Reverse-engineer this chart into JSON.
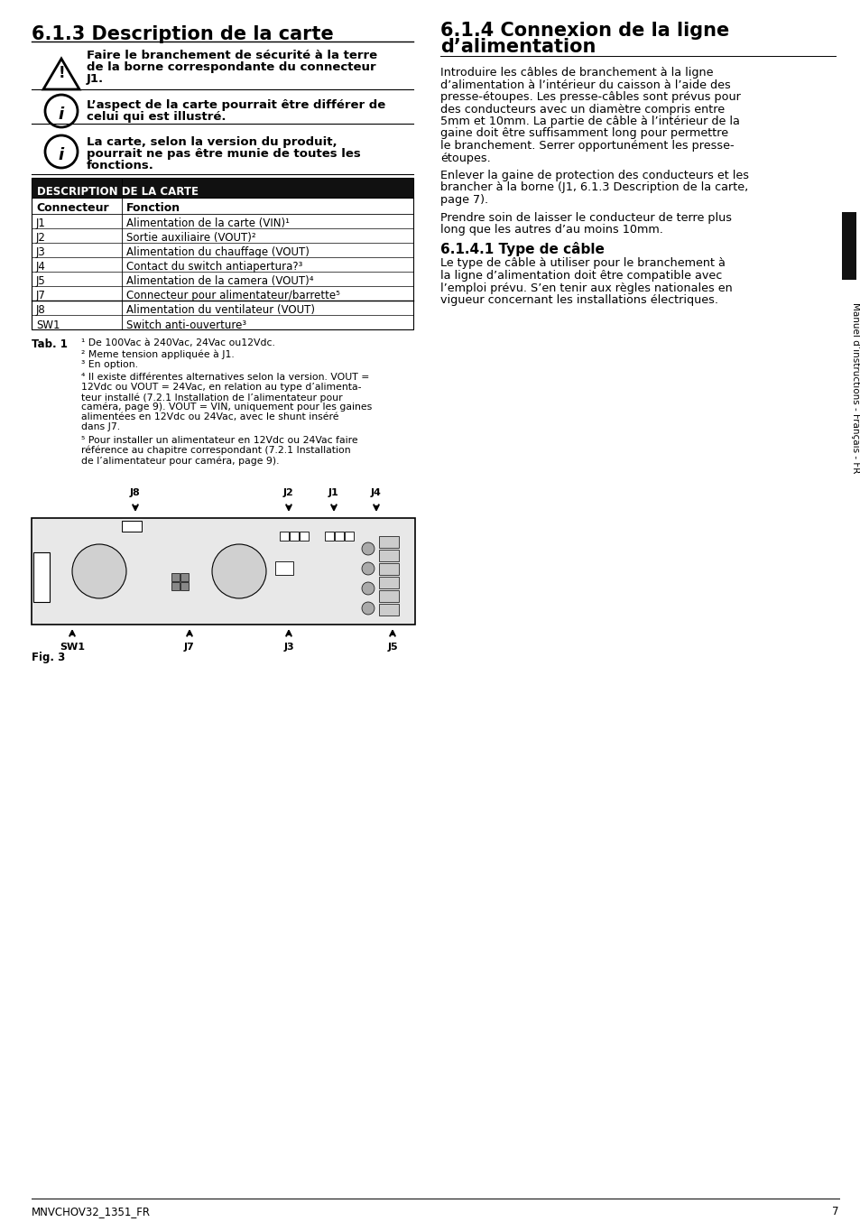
{
  "page_num": "7",
  "footer_left": "MNVCHOV32_1351_FR",
  "side_text": "Manuel d’instructions - Français - FR",
  "left_col": {
    "title": "6.1.3 Description de la carte",
    "warning_line1": "Faire le branchement de sécurité à la terre",
    "warning_line2": "de la borne correspondante du connecteur",
    "warning_line3": "J1.",
    "info1_line1": "L’aspect de la carte pourrait être différer de",
    "info1_line2": "celui qui est illustré.",
    "info2_line1": "La carte, selon la version du produit,",
    "info2_line2": "pourrait ne pas être munie de toutes les",
    "info2_line3": "fonctions.",
    "table_header": "DESCRIPTION DE LA CARTE",
    "table_col1": "Connecteur",
    "table_col2": "Fonction",
    "table_rows": [
      [
        "J1",
        "Alimentation de la carte (VIN)¹"
      ],
      [
        "J2",
        "Sortie auxiliaire (VOUT)²"
      ],
      [
        "J3",
        "Alimentation du chauffage (VOUT)"
      ],
      [
        "J4",
        "Contact du switch antiapertura?³"
      ],
      [
        "J5",
        "Alimentation de la camera (VOUT)⁴"
      ],
      [
        "J7",
        "Connecteur pour alimentateur/barrette⁵"
      ],
      [
        "J8",
        "Alimentation du ventilateur (VOUT)"
      ],
      [
        "SW1",
        "Switch anti-ouverture³"
      ]
    ],
    "tab1_label": "Tab. 1",
    "fn1": "¹ De 100Vac à 240Vac, 24Vac ou12Vdc.",
    "fn2": "² Meme tension appliquée à J1.",
    "fn3": "³ En option.",
    "fn4_lines": [
      "⁴ Il existe différentes alternatives selon la version. VOUT =",
      "12Vdc ou VOUT = 24Vac, en relation au type d’alimenta-",
      "teur installé (7.2.1 Installation de l’alimentateur pour",
      "caméra, page 9). VOUT = VIN, uniquement pour les gaines",
      "alimentées en 12Vdc ou 24Vac, avec le shunt inséré",
      "dans J7."
    ],
    "fn5_lines": [
      "⁵ Pour installer un alimentateur en 12Vdc ou 24Vac faire",
      "référence au chapitre correspondant (7.2.1 Installation",
      "de l’alimentateur pour caméra, page 9)."
    ],
    "fig_label": "Fig. 3",
    "diagram_top_labels": [
      [
        "J8",
        115
      ],
      [
        "J2",
        285
      ],
      [
        "J1",
        335
      ],
      [
        "J4",
        382
      ]
    ],
    "diagram_bot_labels": [
      [
        "SW1",
        45
      ],
      [
        "J7",
        175
      ],
      [
        "J3",
        285
      ],
      [
        "J5",
        400
      ]
    ]
  },
  "right_col": {
    "title_line1": "6.1.4 Connexion de la ligne",
    "title_line2": "d’alimentation",
    "para1_lines": [
      "Introduire les câbles de branchement à la ligne",
      "d’alimentation à l’intérieur du caisson à l’aide des",
      "presse-étoupes. Les presse-câbles sont prévus pour",
      "des conducteurs avec un diamètre compris entre",
      "5mm et 10mm. La partie de câble à l’intérieur de la",
      "gaine doit être suffisamment long pour permettre",
      "le branchement. Serrer opportunément les presse-",
      "étoupes."
    ],
    "para2_lines": [
      "Enlever la gaine de protection des conducteurs et les",
      "brancher à la borne (J1, 6.1.3 Description de la carte,",
      "page 7)."
    ],
    "para3_lines": [
      "Prendre soin de laisser le conducteur de terre plus",
      "long que les autres d’au moins 10mm."
    ],
    "subtitle": "6.1.4.1 Type de câble",
    "para4_lines": [
      "Le type de câble à utiliser pour le branchement à",
      "la ligne d’alimentation doit être compatible avec",
      "l’emploi prévu. S’en tenir aux règles nationales en",
      "vigueur concernant les installations électriques."
    ]
  },
  "bg_color": "#ffffff",
  "text_color": "#000000",
  "table_header_bg": "#111111",
  "table_header_color": "#ffffff"
}
